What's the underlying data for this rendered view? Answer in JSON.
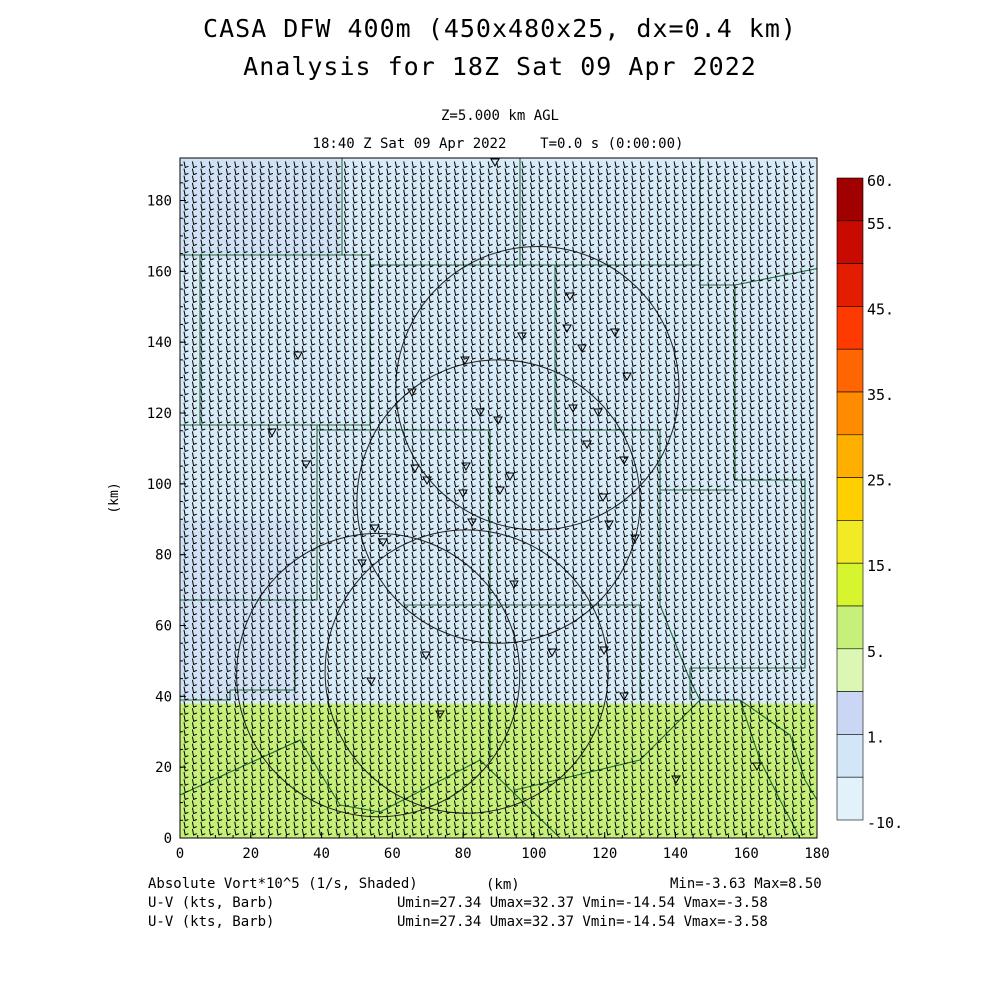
{
  "titles": {
    "line1": "CASA DFW 400m (450x480x25, dx=0.4 km)",
    "line2": "Analysis for 18Z Sat 09 Apr 2022",
    "level": "Z=5.000 km AGL",
    "time": "18:40 Z Sat 09 Apr 2022",
    "elapsed": "T=0.0 s (0:00:00)"
  },
  "footer": {
    "field_label": "Absolute Vort*10^5 (1/s, Shaded)",
    "axis_unit": "(km)",
    "field_range": "Min=-3.63 Max=8.50",
    "barb1_label": "U-V (kts, Barb)",
    "barb1_range": "Umin=27.34 Umax=32.37 Vmin=-14.54 Vmax=-3.58",
    "barb2_label": "U-V (kts, Barb)",
    "barb2_range": "Umin=27.34 Umax=32.37 Vmin=-14.54 Vmax=-3.58"
  },
  "chart_data": {
    "type": "heatmap",
    "xlabel": "",
    "ylabel": "(km)",
    "xlim": [
      0,
      180
    ],
    "ylim": [
      0,
      192
    ],
    "x_ticks": [
      0,
      20,
      40,
      60,
      80,
      100,
      120,
      140,
      160,
      180
    ],
    "y_ticks": [
      0,
      20,
      40,
      60,
      80,
      100,
      120,
      140,
      160,
      180
    ],
    "colorbar": {
      "labels": [
        "60.",
        "55.",
        "45.",
        "35.",
        "25.",
        "15.",
        "5.",
        "1.",
        "-10."
      ],
      "colors": [
        "#a00000",
        "#c80a00",
        "#e21d00",
        "#ff3a00",
        "#ff6500",
        "#ff8c00",
        "#ffaf00",
        "#ffd000",
        "#f2ea24",
        "#d6f52e",
        "#c6f07a",
        "#dcf6b4",
        "#cbd6f5",
        "#d3e6f8",
        "#e2f2fb"
      ]
    },
    "field_regions": [
      {
        "y_range": [
          0,
          38
        ],
        "value_class": "5 to 10",
        "color": "#c6f07a"
      },
      {
        "y_range": [
          38,
          192
        ],
        "value_class": "-10 to 1",
        "color": "#d8ebf8"
      }
    ],
    "field_min": -3.63,
    "field_max": 8.5,
    "wind": {
      "u_min": 27.34,
      "u_max": 32.37,
      "v_min": -14.54,
      "v_max": -3.58
    },
    "radar_coverage_circles": [
      {
        "center": [
          56,
          46
        ],
        "radius": 40
      },
      {
        "center": [
          81,
          47
        ],
        "radius": 40
      },
      {
        "center": [
          90,
          95
        ],
        "radius": 40
      },
      {
        "center": [
          101,
          127
        ],
        "radius": 40
      }
    ],
    "grid_on": false
  }
}
